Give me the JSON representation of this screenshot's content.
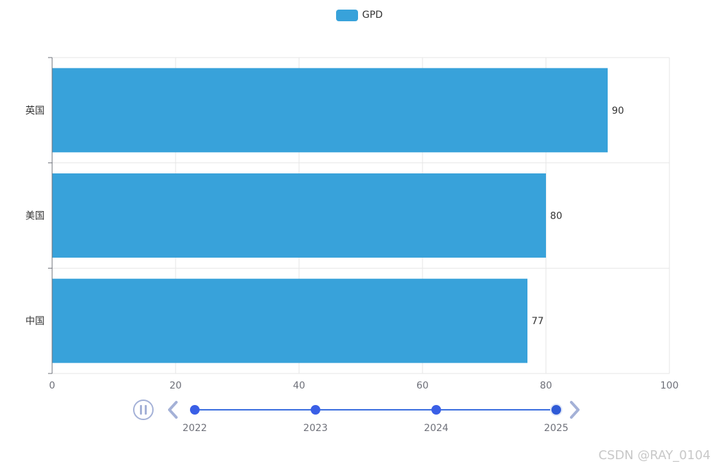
{
  "chart_data": {
    "type": "bar",
    "orientation": "horizontal",
    "categories": [
      "中国",
      "美国",
      "英国"
    ],
    "series": [
      {
        "name": "GPD",
        "values": [
          77,
          80,
          90
        ],
        "color": "#38a2da"
      }
    ],
    "xlim": [
      0,
      100
    ],
    "x_ticks": [
      0,
      20,
      40,
      60,
      80,
      100
    ],
    "show_data_labels": true,
    "grid": true,
    "legend": {
      "position": "top-center"
    }
  },
  "timeline": {
    "years": [
      "2022",
      "2023",
      "2024",
      "2025"
    ],
    "current_index": 3,
    "play_state": "paused",
    "colors": {
      "line": "#3a6ddf",
      "point": "#3a5fe6",
      "control": "#a4b1d7",
      "current": "#2f5ad6"
    },
    "icons": {
      "play": "pause-icon",
      "prev": "chevron-left-icon",
      "next": "chevron-right-icon"
    }
  },
  "watermark": {
    "text": "CSDN @RAY_0104"
  },
  "theme": {
    "axis_color": "#6e7079",
    "grid_color": "#e6e6e6",
    "text_color": "#333333"
  }
}
